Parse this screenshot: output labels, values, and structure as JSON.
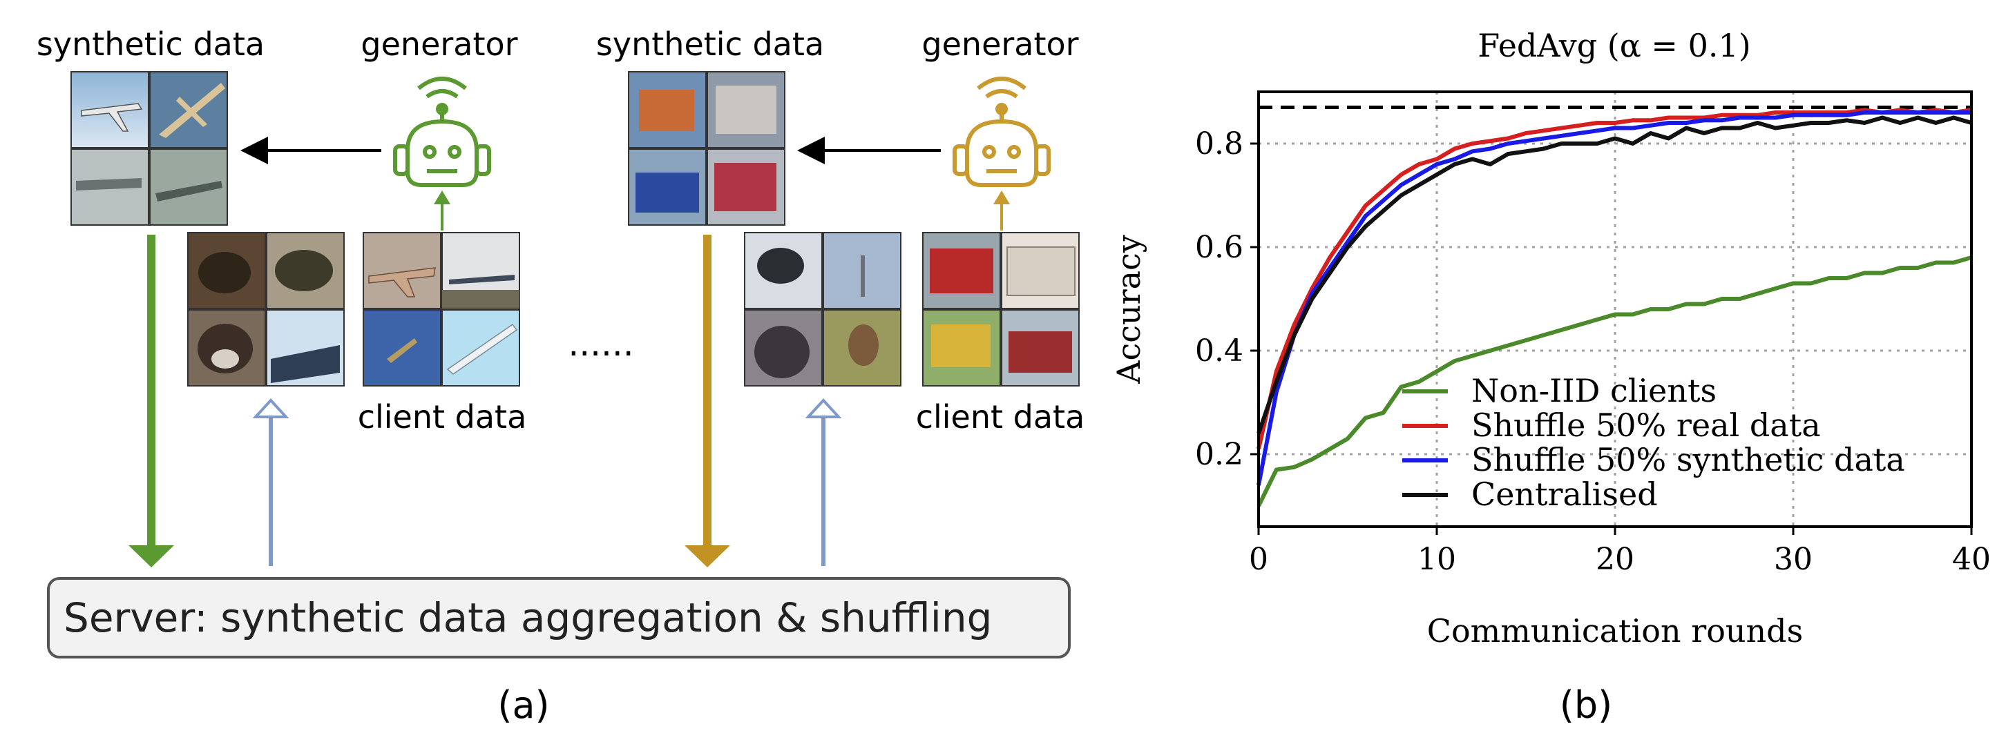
{
  "diagram": {
    "left_group": {
      "synthetic_label": "synthetic data",
      "generator_label": "generator",
      "client_label": "client data",
      "generator_color": "#5b9a30",
      "down_arrow_color": "#5b9a30"
    },
    "right_group": {
      "synthetic_label": "synthetic data",
      "generator_label": "generator",
      "client_label": "client data",
      "generator_color": "#c99a2e",
      "down_arrow_color": "#c39224"
    },
    "upload_arrow_color": "#7f99c9",
    "ellipsis": "......",
    "server_label": "Server: synthetic data aggregation & shuffling",
    "caption": "(a)"
  },
  "chart_data": {
    "type": "line",
    "title": "FedAvg (α = 0.1)",
    "xlabel": "Communication rounds",
    "ylabel": "Accuracy",
    "xlim": [
      0,
      40
    ],
    "ylim": [
      0.06,
      0.9
    ],
    "xticks": [
      0,
      10,
      20,
      30,
      40
    ],
    "yticks": [
      0.2,
      0.4,
      0.6,
      0.8
    ],
    "grid": true,
    "legend": "bottom-center",
    "reference_line": {
      "y": 0.87,
      "style": "dashed",
      "color": "#000000"
    },
    "x": [
      0,
      1,
      2,
      3,
      4,
      5,
      6,
      7,
      8,
      9,
      10,
      11,
      12,
      13,
      14,
      15,
      16,
      17,
      18,
      19,
      20,
      21,
      22,
      23,
      24,
      25,
      26,
      27,
      28,
      29,
      30,
      31,
      32,
      33,
      34,
      35,
      36,
      37,
      38,
      39,
      40
    ],
    "series": [
      {
        "name": "Non-IID clients",
        "color": "#4a8a2a",
        "values": [
          0.1,
          0.17,
          0.175,
          0.19,
          0.21,
          0.23,
          0.27,
          0.28,
          0.33,
          0.34,
          0.36,
          0.38,
          0.39,
          0.4,
          0.41,
          0.42,
          0.43,
          0.44,
          0.45,
          0.46,
          0.47,
          0.47,
          0.48,
          0.48,
          0.49,
          0.49,
          0.5,
          0.5,
          0.51,
          0.52,
          0.53,
          0.53,
          0.54,
          0.54,
          0.55,
          0.55,
          0.56,
          0.56,
          0.57,
          0.57,
          0.58
        ]
      },
      {
        "name": "Shuffle 50% real data",
        "color": "#d62020",
        "values": [
          0.21,
          0.36,
          0.45,
          0.52,
          0.58,
          0.63,
          0.68,
          0.71,
          0.74,
          0.76,
          0.77,
          0.79,
          0.8,
          0.805,
          0.81,
          0.82,
          0.825,
          0.83,
          0.835,
          0.84,
          0.84,
          0.845,
          0.845,
          0.85,
          0.85,
          0.85,
          0.855,
          0.855,
          0.855,
          0.86,
          0.86,
          0.86,
          0.86,
          0.86,
          0.865,
          0.86,
          0.865,
          0.86,
          0.865,
          0.86,
          0.865
        ]
      },
      {
        "name": "Shuffle 50% synthetic data",
        "color": "#1a1ae6",
        "values": [
          0.14,
          0.32,
          0.43,
          0.51,
          0.56,
          0.61,
          0.66,
          0.69,
          0.72,
          0.74,
          0.76,
          0.77,
          0.785,
          0.79,
          0.8,
          0.805,
          0.81,
          0.815,
          0.82,
          0.825,
          0.83,
          0.83,
          0.835,
          0.84,
          0.84,
          0.845,
          0.845,
          0.85,
          0.85,
          0.85,
          0.855,
          0.855,
          0.855,
          0.855,
          0.86,
          0.86,
          0.86,
          0.86,
          0.86,
          0.86,
          0.86
        ]
      },
      {
        "name": "Centralised",
        "color": "#111111",
        "values": [
          0.24,
          0.34,
          0.43,
          0.5,
          0.55,
          0.6,
          0.64,
          0.67,
          0.7,
          0.72,
          0.74,
          0.76,
          0.77,
          0.76,
          0.78,
          0.785,
          0.79,
          0.8,
          0.8,
          0.8,
          0.81,
          0.8,
          0.82,
          0.81,
          0.83,
          0.82,
          0.83,
          0.83,
          0.84,
          0.83,
          0.835,
          0.84,
          0.84,
          0.845,
          0.84,
          0.85,
          0.84,
          0.85,
          0.84,
          0.85,
          0.84
        ]
      }
    ],
    "caption": "(b)"
  }
}
